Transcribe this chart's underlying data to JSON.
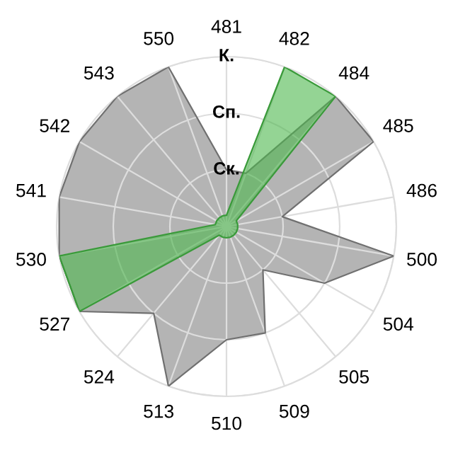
{
  "chart_data": {
    "type": "radar",
    "categories": [
      "481",
      "482",
      "484",
      "485",
      "486",
      "500",
      "504",
      "505",
      "509",
      "510",
      "513",
      "524",
      "527",
      "530",
      "541",
      "542",
      "543",
      "550"
    ],
    "series": [
      {
        "color": "#b4b4b4",
        "values": [
          1.0,
          1.0,
          3.0,
          3.0,
          1.0,
          3.0,
          2.0,
          1.0,
          2.0,
          2.0,
          3.0,
          2.0,
          3.0,
          3.0,
          3.0,
          3.0,
          3.0,
          3.0
        ]
      },
      {
        "color": "#4cb84c",
        "values": [
          0.2,
          3.0,
          3.0,
          0.2,
          0.2,
          0.2,
          0.2,
          0.2,
          0.2,
          0.2,
          0.2,
          0.2,
          3.0,
          3.0,
          0.2,
          0.2,
          0.2,
          0.2
        ]
      }
    ],
    "ylim": [
      0,
      3
    ],
    "yticks": [
      {
        "value": 1,
        "label": "Ск."
      },
      {
        "value": 2,
        "label": "Сп."
      },
      {
        "value": 3,
        "label": "К."
      }
    ],
    "grid": true
  }
}
